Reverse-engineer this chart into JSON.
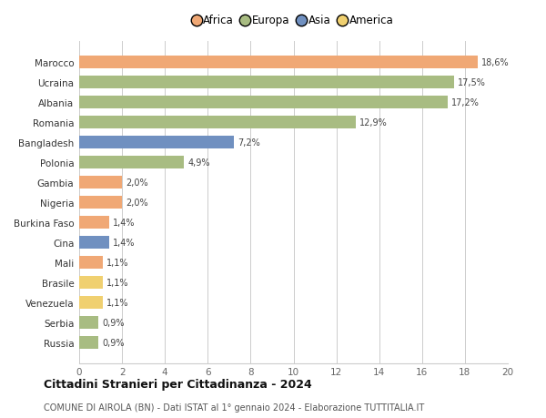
{
  "countries": [
    "Russia",
    "Serbia",
    "Venezuela",
    "Brasile",
    "Mali",
    "Cina",
    "Burkina Faso",
    "Nigeria",
    "Gambia",
    "Polonia",
    "Bangladesh",
    "Romania",
    "Albania",
    "Ucraina",
    "Marocco"
  ],
  "values": [
    0.9,
    0.9,
    1.1,
    1.1,
    1.1,
    1.4,
    1.4,
    2.0,
    2.0,
    4.9,
    7.2,
    12.9,
    17.2,
    17.5,
    18.6
  ],
  "labels": [
    "0,9%",
    "0,9%",
    "1,1%",
    "1,1%",
    "1,1%",
    "1,4%",
    "1,4%",
    "2,0%",
    "2,0%",
    "4,9%",
    "7,2%",
    "12,9%",
    "17,2%",
    "17,5%",
    "18,6%"
  ],
  "continents": [
    "Europa",
    "Europa",
    "America",
    "America",
    "Africa",
    "Asia",
    "Africa",
    "Africa",
    "Africa",
    "Europa",
    "Asia",
    "Europa",
    "Europa",
    "Europa",
    "Africa"
  ],
  "colors": {
    "Africa": "#F0A875",
    "Europa": "#A8BC82",
    "Asia": "#7090C0",
    "America": "#F0D070"
  },
  "legend_order": [
    "Africa",
    "Europa",
    "Asia",
    "America"
  ],
  "xlim": [
    0,
    20
  ],
  "xticks": [
    0,
    2,
    4,
    6,
    8,
    10,
    12,
    14,
    16,
    18,
    20
  ],
  "title": "Cittadini Stranieri per Cittadinanza - 2024",
  "subtitle": "COMUNE DI AIROLA (BN) - Dati ISTAT al 1° gennaio 2024 - Elaborazione TUTTITALIA.IT",
  "bg_color": "#ffffff",
  "grid_color": "#cccccc",
  "bar_height": 0.65
}
